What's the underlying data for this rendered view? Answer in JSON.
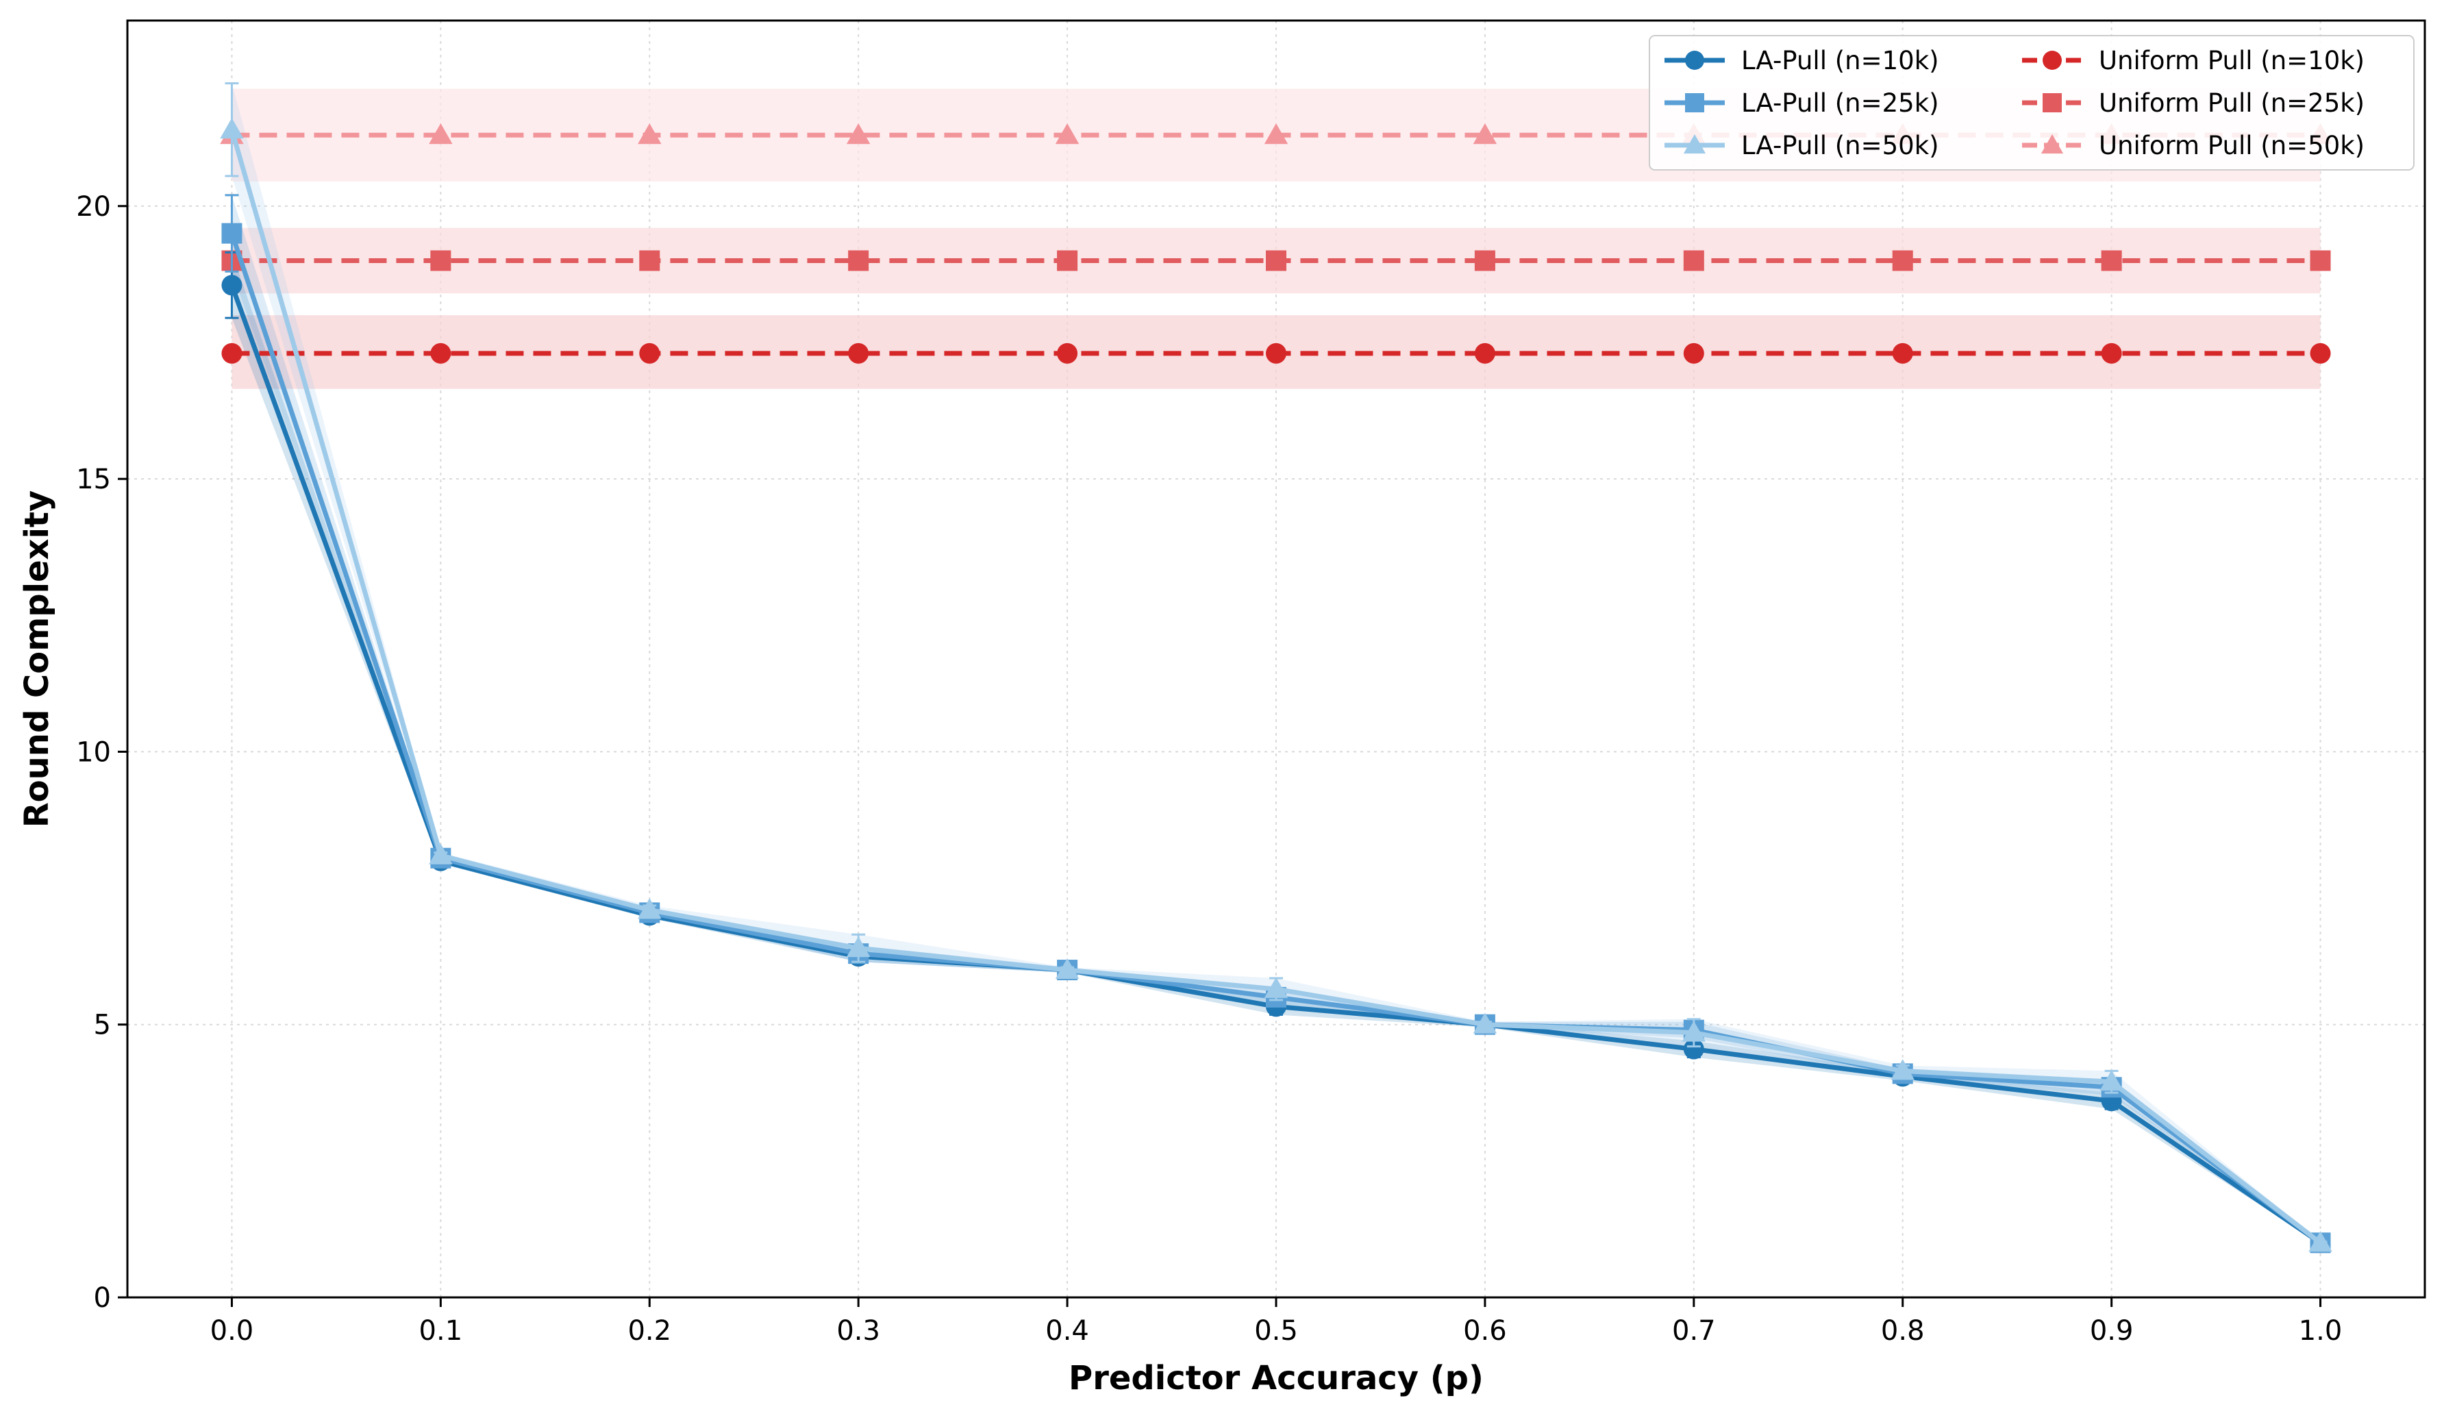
{
  "chart_data": {
    "type": "line",
    "title": "",
    "xlabel": "Predictor Accuracy (p)",
    "ylabel": "Round Complexity",
    "x": [
      0.0,
      0.1,
      0.2,
      0.3,
      0.4,
      0.5,
      0.6,
      0.7,
      0.8,
      0.9,
      1.0
    ],
    "x_ticks": [
      "0.0",
      "0.1",
      "0.2",
      "0.3",
      "0.4",
      "0.5",
      "0.6",
      "0.7",
      "0.8",
      "0.9",
      "1.0"
    ],
    "y_ticks": [
      "0",
      "5",
      "10",
      "15",
      "20"
    ],
    "xlim": [
      -0.05,
      1.05
    ],
    "ylim": [
      0,
      23.4
    ],
    "grid": true,
    "legend_position": "top-right",
    "legend_columns": 2,
    "series": [
      {
        "name": "LA-Pull (n=10k)",
        "group": "la",
        "color": "#1f77b4",
        "marker": "circle",
        "dashed": false,
        "values": [
          18.55,
          8.0,
          7.0,
          6.25,
          6.0,
          5.33,
          5.0,
          4.55,
          4.05,
          3.6,
          1.0
        ],
        "errors": [
          0.6,
          0.05,
          0.05,
          0.1,
          0.05,
          0.15,
          0.05,
          0.15,
          0.08,
          0.15,
          0.02
        ]
      },
      {
        "name": "LA-Pull (n=25k)",
        "group": "la",
        "color": "#5aa0d6",
        "marker": "square",
        "dashed": false,
        "values": [
          19.5,
          8.05,
          7.05,
          6.3,
          6.0,
          5.5,
          5.0,
          4.9,
          4.1,
          3.85,
          1.0
        ],
        "errors": [
          0.7,
          0.05,
          0.05,
          0.15,
          0.05,
          0.15,
          0.05,
          0.15,
          0.08,
          0.15,
          0.02
        ]
      },
      {
        "name": "LA-Pull (n=50k)",
        "group": "la",
        "color": "#9ecae9",
        "marker": "triangle",
        "dashed": false,
        "values": [
          21.4,
          8.1,
          7.1,
          6.4,
          6.0,
          5.65,
          5.0,
          4.85,
          4.15,
          3.95,
          1.0
        ],
        "errors": [
          0.85,
          0.05,
          0.08,
          0.25,
          0.05,
          0.2,
          0.05,
          0.25,
          0.1,
          0.2,
          0.02
        ]
      },
      {
        "name": "Uniform Pull (n=10k)",
        "group": "uniform",
        "color": "#d62728",
        "band": "#f7d2d3",
        "marker": "circle",
        "dashed": true,
        "values": [
          17.3,
          17.3,
          17.3,
          17.3,
          17.3,
          17.3,
          17.3,
          17.3,
          17.3,
          17.3,
          17.3
        ],
        "band_range": [
          16.65,
          18.0
        ]
      },
      {
        "name": "Uniform Pull (n=25k)",
        "group": "uniform",
        "color": "#e05a5e",
        "band": "#fadadc",
        "marker": "square",
        "dashed": true,
        "values": [
          19.0,
          19.0,
          19.0,
          19.0,
          19.0,
          19.0,
          19.0,
          19.0,
          19.0,
          19.0,
          19.0
        ],
        "band_range": [
          18.4,
          19.6
        ]
      },
      {
        "name": "Uniform Pull (n=50k)",
        "group": "uniform",
        "color": "#f2959a",
        "band": "#fde5e8",
        "marker": "triangle",
        "dashed": true,
        "values": [
          21.3,
          21.3,
          21.3,
          21.3,
          21.3,
          21.3,
          21.3,
          21.3,
          21.3,
          21.3,
          21.3
        ],
        "band_range": [
          20.45,
          22.15
        ]
      }
    ]
  }
}
